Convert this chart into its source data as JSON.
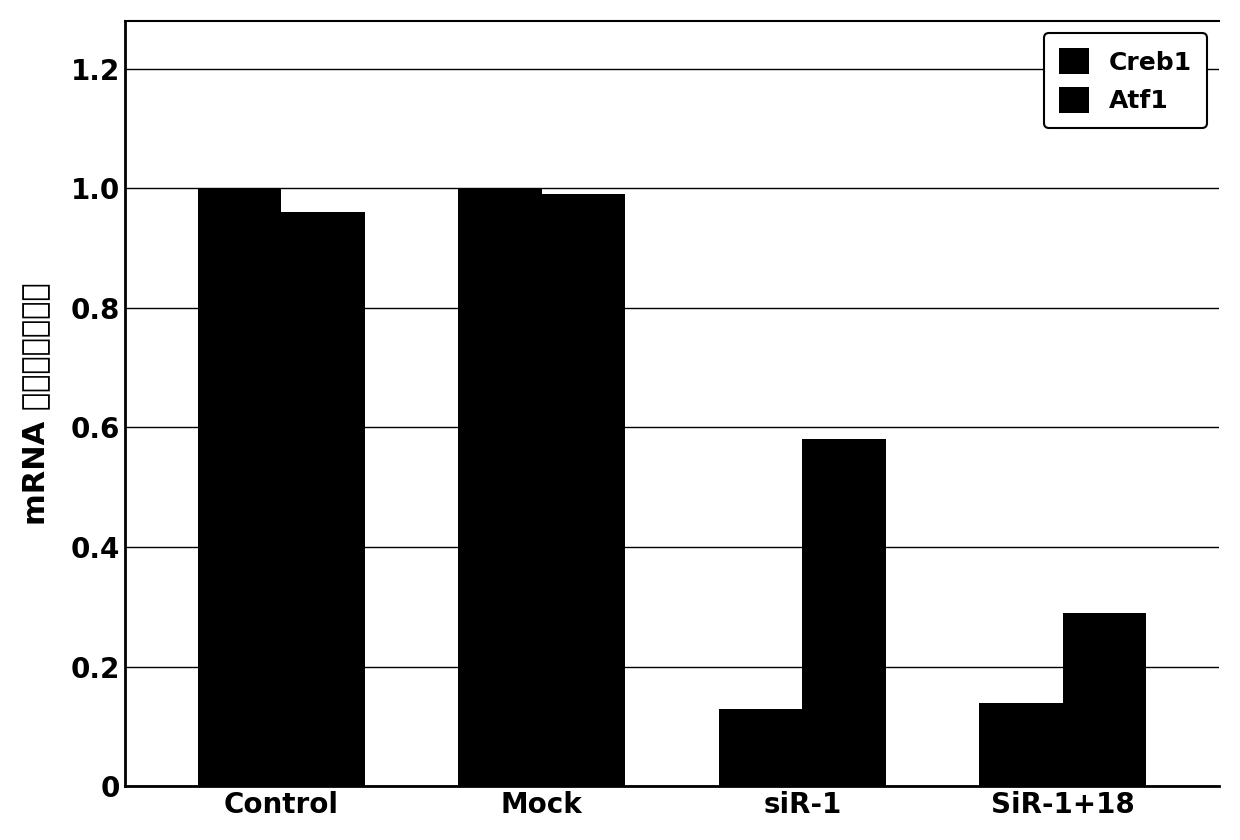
{
  "categories": [
    "Control",
    "Mock",
    "siR-1",
    "SiR-1+18"
  ],
  "creb1_values": [
    1.0,
    1.0,
    0.13,
    0.14
  ],
  "atf1_values": [
    0.96,
    0.99,
    0.58,
    0.29
  ],
  "bar_color": "#000000",
  "bar_width": 0.32,
  "ylabel": "mRNA 表达的相对水平",
  "ylim": [
    0,
    1.28
  ],
  "yticks": [
    0,
    0.2,
    0.4,
    0.6,
    0.8,
    1.0,
    1.2
  ],
  "legend_labels": [
    "Creb1",
    "Atf1"
  ],
  "legend_marker_color": "#000000",
  "background_color": "#ffffff",
  "ylabel_fontsize": 22,
  "tick_fontsize": 20,
  "legend_fontsize": 18,
  "xlabel_fontsize": 20
}
